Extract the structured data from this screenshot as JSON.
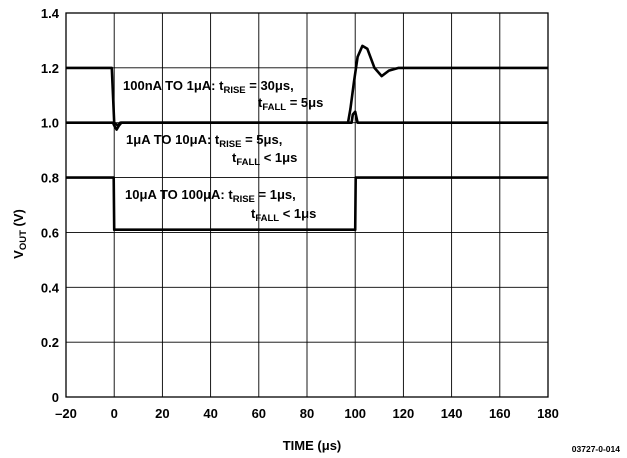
{
  "chart_data": {
    "type": "line",
    "xlabel": {
      "main": "TIME (",
      "mu": "μ",
      "unit": "s)"
    },
    "ylabel": {
      "main": "V",
      "sub": "OUT",
      "rest": " (V)"
    },
    "xlim": [
      -20,
      180
    ],
    "ylim": [
      0,
      1.4
    ],
    "xticks": [
      "–20",
      "0",
      "20",
      "40",
      "60",
      "80",
      "100",
      "120",
      "140",
      "160",
      "180"
    ],
    "yticks": [
      "0",
      "0.2",
      "0.4",
      "0.6",
      "0.8",
      "1.0",
      "1.2",
      "1.4"
    ],
    "grid": true,
    "figure_id": "03727-0-014",
    "annotations": [
      {
        "line1_pre": "100nA TO 1",
        "line1_mu": "μ",
        "line1_a": "A: t",
        "line1_sub": "RISE",
        "line1_val": " = 30",
        "line1_mu2": "μ",
        "line1_end": "s,",
        "line2_pre": "t",
        "line2_sub": "FALL",
        "line2_val": " = 5",
        "line2_mu": "μ",
        "line2_end": "s"
      },
      {
        "line1_pre": "1",
        "line1_mu": "μ",
        "line1_a": "A TO 10",
        "line1_mu_b": "μ",
        "line1_b": "A: t",
        "line1_sub": "RISE",
        "line1_val": " = 5",
        "line1_mu2": "μ",
        "line1_end": "s,",
        "line2_pre": "t",
        "line2_sub": "FALL",
        "line2_val": " < 1",
        "line2_mu": "μ",
        "line2_end": "s"
      },
      {
        "line1_pre": "10",
        "line1_mu": "μ",
        "line1_a": "A TO 100",
        "line1_mu_b": "μ",
        "line1_b": "A: t",
        "line1_sub": "RISE",
        "line1_val": " = 1",
        "line1_mu2": "μ",
        "line1_end": "s,",
        "line2_pre": "t",
        "line2_sub": "FALL",
        "line2_val": " < 1",
        "line2_mu": "μ",
        "line2_end": "s"
      }
    ],
    "series": [
      {
        "x": [
          -20,
          -1,
          0,
          1.5,
          2.5,
          97,
          98,
          99.5,
          101,
          103,
          105,
          108,
          111,
          114,
          118,
          122,
          125,
          180
        ],
        "y": [
          1.2,
          1.2,
          1.0,
          0.99,
          1.0,
          1.0,
          1.05,
          1.15,
          1.24,
          1.28,
          1.27,
          1.2,
          1.17,
          1.19,
          1.2,
          1.2,
          1.2,
          1.2
        ]
      },
      {
        "x": [
          -20,
          -0.5,
          0,
          1,
          2,
          3,
          98.5,
          99,
          100,
          101,
          102,
          180
        ],
        "y": [
          1.0,
          1.0,
          0.99,
          0.975,
          0.99,
          1.0,
          1.0,
          1.03,
          1.04,
          1.0,
          1.0,
          1.0
        ]
      },
      {
        "x": [
          -20,
          -0.2,
          0,
          100,
          100.2,
          180
        ],
        "y": [
          0.8,
          0.8,
          0.61,
          0.61,
          0.8,
          0.8
        ]
      }
    ]
  }
}
